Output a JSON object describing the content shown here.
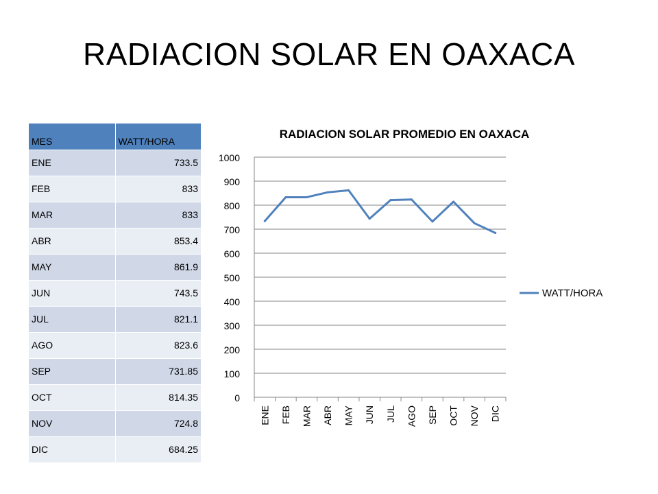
{
  "slide": {
    "title": "RADIACION SOLAR EN OAXACA"
  },
  "table": {
    "headers": [
      "MES",
      "WATT/HORA"
    ],
    "rows": [
      [
        "ENE",
        "733.5"
      ],
      [
        "FEB",
        "833"
      ],
      [
        "MAR",
        "833"
      ],
      [
        "ABR",
        "853.4"
      ],
      [
        "MAY",
        "861.9"
      ],
      [
        "JUN",
        "743.5"
      ],
      [
        "JUL",
        "821.1"
      ],
      [
        "AGO",
        "823.6"
      ],
      [
        "SEP",
        "731.85"
      ],
      [
        "OCT",
        "814.35"
      ],
      [
        "NOV",
        "724.8"
      ],
      [
        "DIC",
        "684.25"
      ]
    ]
  },
  "chart_data": {
    "type": "line",
    "title": "RADIACION SOLAR PROMEDIO EN OAXACA",
    "categories": [
      "ENE",
      "FEB",
      "MAR",
      "ABR",
      "MAY",
      "JUN",
      "JUL",
      "AGO",
      "SEP",
      "OCT",
      "NOV",
      "DIC"
    ],
    "series": [
      {
        "name": "WATT/HORA",
        "color": "#4f81bd",
        "values": [
          733.5,
          833,
          833,
          853.4,
          861.9,
          743.5,
          821.1,
          823.6,
          731.85,
          814.35,
          724.8,
          684.25
        ]
      }
    ],
    "ylim": [
      0,
      1000
    ],
    "yticks": [
      "0",
      "100",
      "200",
      "300",
      "400",
      "500",
      "600",
      "700",
      "800",
      "900",
      "1000"
    ],
    "grid": true,
    "legend": "right"
  }
}
